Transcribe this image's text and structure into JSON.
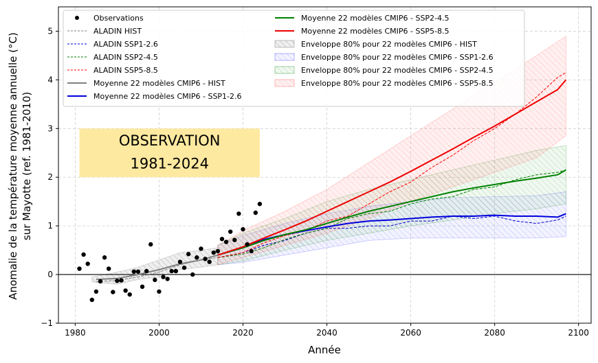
{
  "chart_data": {
    "type": "line",
    "xlabel": "Année",
    "ylabel_line1": "Anomalie de la température moyenne annuelle (°C)",
    "ylabel_line2": "sur Mayotte (ref. 1981-2010)",
    "xlim": [
      1976,
      2103
    ],
    "ylim": [
      -1,
      5.5
    ],
    "xticks": [
      1980,
      2000,
      2020,
      2040,
      2060,
      2080,
      2100
    ],
    "yticks": [
      -1,
      0,
      1,
      2,
      3,
      4,
      5
    ],
    "xtick_labels": [
      "1980",
      "2000",
      "2020",
      "2040",
      "2060",
      "2080",
      "2100"
    ],
    "ytick_labels": [
      "−1",
      "0",
      "1",
      "2",
      "3",
      "4",
      "5"
    ],
    "annotation": {
      "line1": "OBSERVATION",
      "line2": "1981-2024",
      "x_range": [
        1981,
        2024
      ],
      "y_range": [
        2.0,
        3.0
      ],
      "color": "#fde9a0"
    },
    "observations": {
      "label": "Observations",
      "x": [
        1981,
        1982,
        1983,
        1984,
        1985,
        1986,
        1987,
        1988,
        1989,
        1990,
        1991,
        1992,
        1993,
        1994,
        1995,
        1996,
        1997,
        1998,
        1999,
        2000,
        2001,
        2002,
        2003,
        2004,
        2005,
        2006,
        2007,
        2008,
        2009,
        2010,
        2011,
        2012,
        2013,
        2014,
        2015,
        2016,
        2017,
        2018,
        2019,
        2020,
        2021,
        2022,
        2023,
        2024
      ],
      "y": [
        0.12,
        0.41,
        0.22,
        -0.52,
        -0.35,
        -0.14,
        0.35,
        0.12,
        -0.36,
        -0.13,
        -0.12,
        -0.33,
        -0.41,
        0.06,
        0.06,
        -0.25,
        0.07,
        0.62,
        -0.11,
        -0.35,
        -0.05,
        -0.09,
        0.07,
        0.07,
        0.26,
        0.14,
        0.42,
        0.0,
        0.35,
        0.53,
        0.32,
        0.26,
        0.45,
        0.48,
        0.73,
        0.67,
        0.88,
        0.71,
        1.25,
        0.93,
        0.62,
        0.48,
        1.27,
        1.45
      ]
    },
    "series": [
      {
        "name": "ALADIN HIST",
        "color": "#808080",
        "style": "dashed",
        "width": 1,
        "x": [
          1985,
          1990,
          1995,
          2000,
          2005,
          2010,
          2014
        ],
        "values": [
          -0.15,
          -0.12,
          -0.05,
          0.05,
          0.2,
          0.3,
          0.35
        ]
      },
      {
        "name": "ALADIN SSP1-2.6",
        "color": "#0000cc",
        "style": "dashed",
        "width": 1,
        "x": [
          2014,
          2020,
          2025,
          2030,
          2035,
          2040,
          2045,
          2050,
          2055,
          2060,
          2065,
          2070,
          2075,
          2080,
          2085,
          2090,
          2095,
          2097
        ],
        "values": [
          0.35,
          0.45,
          0.6,
          0.7,
          0.85,
          0.95,
          0.95,
          1.0,
          1.0,
          1.1,
          1.1,
          1.2,
          1.15,
          1.2,
          1.1,
          1.05,
          1.12,
          1.2
        ]
      },
      {
        "name": "ALADIN SSP2-4.5",
        "color": "#008000",
        "style": "dashed",
        "width": 1,
        "x": [
          2014,
          2020,
          2025,
          2030,
          2035,
          2040,
          2045,
          2050,
          2055,
          2060,
          2065,
          2070,
          2075,
          2080,
          2085,
          2090,
          2095,
          2097
        ],
        "values": [
          0.35,
          0.42,
          0.55,
          0.72,
          0.85,
          0.95,
          1.15,
          1.25,
          1.3,
          1.45,
          1.55,
          1.6,
          1.75,
          1.8,
          1.95,
          2.05,
          2.1,
          2.15
        ]
      },
      {
        "name": "ALADIN SSP5-8.5",
        "color": "#ff0000",
        "style": "dashed",
        "width": 1,
        "x": [
          2014,
          2020,
          2025,
          2030,
          2035,
          2040,
          2045,
          2050,
          2055,
          2060,
          2065,
          2070,
          2075,
          2080,
          2085,
          2090,
          2095,
          2097
        ],
        "values": [
          0.35,
          0.45,
          0.65,
          0.8,
          0.9,
          1.1,
          1.2,
          1.45,
          1.7,
          1.9,
          2.2,
          2.45,
          2.75,
          3.0,
          3.3,
          3.65,
          4.05,
          4.15
        ]
      },
      {
        "name": "Moyenne 22 modèles CMIP6 - HIST",
        "color": "#808080",
        "style": "solid",
        "width": 2,
        "x": [
          1985,
          1990,
          1995,
          2000,
          2005,
          2010,
          2014
        ],
        "values": [
          -0.1,
          -0.08,
          0.0,
          0.1,
          0.22,
          0.3,
          0.4
        ]
      },
      {
        "name": "Moyenne 22 modèles CMIP6 - SSP1-2.6",
        "color": "#0000dd",
        "style": "solid",
        "width": 2,
        "x": [
          2014,
          2020,
          2025,
          2030,
          2035,
          2040,
          2045,
          2050,
          2055,
          2060,
          2065,
          2070,
          2075,
          2080,
          2085,
          2090,
          2095,
          2097
        ],
        "values": [
          0.4,
          0.55,
          0.72,
          0.82,
          0.9,
          0.98,
          1.05,
          1.1,
          1.12,
          1.15,
          1.18,
          1.2,
          1.2,
          1.22,
          1.2,
          1.2,
          1.18,
          1.25
        ]
      },
      {
        "name": "Moyenne 22 modèles CMIP6 - SSP2-4.5",
        "color": "#008000",
        "style": "solid",
        "width": 2,
        "x": [
          2014,
          2020,
          2025,
          2030,
          2035,
          2040,
          2045,
          2050,
          2055,
          2060,
          2065,
          2070,
          2075,
          2080,
          2085,
          2090,
          2095,
          2097
        ],
        "values": [
          0.4,
          0.55,
          0.7,
          0.82,
          0.92,
          1.05,
          1.18,
          1.3,
          1.4,
          1.5,
          1.6,
          1.7,
          1.78,
          1.85,
          1.92,
          1.98,
          2.05,
          2.15
        ]
      },
      {
        "name": "Moyenne 22 modèles CMIP6 - SSP5-8.5",
        "color": "#ee0000",
        "style": "solid",
        "width": 2,
        "x": [
          2014,
          2020,
          2025,
          2030,
          2035,
          2040,
          2045,
          2050,
          2055,
          2060,
          2065,
          2070,
          2075,
          2080,
          2085,
          2090,
          2095,
          2097
        ],
        "values": [
          0.4,
          0.57,
          0.75,
          0.92,
          1.1,
          1.3,
          1.5,
          1.7,
          1.9,
          2.12,
          2.35,
          2.58,
          2.82,
          3.05,
          3.3,
          3.55,
          3.8,
          4.0
        ]
      }
    ],
    "envelopes": [
      {
        "name": "Enveloppe 80% pour 22 modèles CMIP6 -  HIST",
        "color": "#808080",
        "x": [
          1984,
          1990,
          1995,
          2000,
          2005,
          2010,
          2014
        ],
        "low": [
          -0.15,
          -0.2,
          -0.1,
          -0.05,
          0.1,
          0.15,
          0.2
        ],
        "high": [
          -0.05,
          0.05,
          0.15,
          0.3,
          0.45,
          0.5,
          0.55
        ]
      },
      {
        "name": "Enveloppe 80% pour 22 modèles CMIP6 -  SSP1-2.6",
        "color": "#6060ff",
        "x": [
          2014,
          2020,
          2030,
          2040,
          2050,
          2060,
          2070,
          2080,
          2090,
          2097
        ],
        "low": [
          0.2,
          0.25,
          0.4,
          0.55,
          0.7,
          0.75,
          0.75,
          0.75,
          0.75,
          0.78
        ],
        "high": [
          0.6,
          0.8,
          1.05,
          1.25,
          1.4,
          1.5,
          1.58,
          1.6,
          1.62,
          1.7
        ]
      },
      {
        "name": "Enveloppe 80% pour 22 modèles CMIP6 -  SSP2-4.5",
        "color": "#40a040",
        "x": [
          2014,
          2020,
          2030,
          2040,
          2050,
          2060,
          2070,
          2080,
          2090,
          2097
        ],
        "low": [
          0.2,
          0.28,
          0.5,
          0.7,
          0.85,
          1.0,
          1.12,
          1.25,
          1.35,
          1.45
        ],
        "high": [
          0.6,
          0.85,
          1.15,
          1.5,
          1.75,
          1.95,
          2.15,
          2.35,
          2.55,
          2.65
        ]
      },
      {
        "name": "Enveloppe 80% pour 22 modèles CMIP6 -  SSP5-8.5",
        "color": "#ff7070",
        "x": [
          2014,
          2020,
          2030,
          2040,
          2050,
          2060,
          2070,
          2080,
          2090,
          2097
        ],
        "low": [
          0.2,
          0.35,
          0.6,
          0.85,
          1.15,
          1.5,
          1.8,
          2.1,
          2.4,
          2.85
        ],
        "high": [
          0.6,
          0.9,
          1.3,
          1.75,
          2.3,
          2.85,
          3.4,
          3.95,
          4.5,
          4.9
        ]
      }
    ],
    "legend": {
      "placement": "top-left",
      "col1": [
        "Observations",
        "ALADIN HIST",
        "ALADIN SSP1-2.6",
        "ALADIN SSP2-4.5",
        "ALADIN SSP5-8.5",
        "Moyenne 22 modèles CMIP6 - HIST",
        "Moyenne 22 modèles CMIP6 - SSP1-2.6"
      ],
      "col2": [
        "Moyenne 22 modèles CMIP6 - SSP2-4.5",
        "Moyenne 22 modèles CMIP6 - SSP5-8.5",
        "Enveloppe 80% pour 22 modèles CMIP6 -  HIST",
        "Enveloppe 80% pour 22 modèles CMIP6 -  SSP1-2.6",
        "Enveloppe 80% pour 22 modèles CMIP6 -  SSP2-4.5",
        "Enveloppe 80% pour 22 modèles CMIP6 -  SSP5-8.5"
      ]
    }
  }
}
